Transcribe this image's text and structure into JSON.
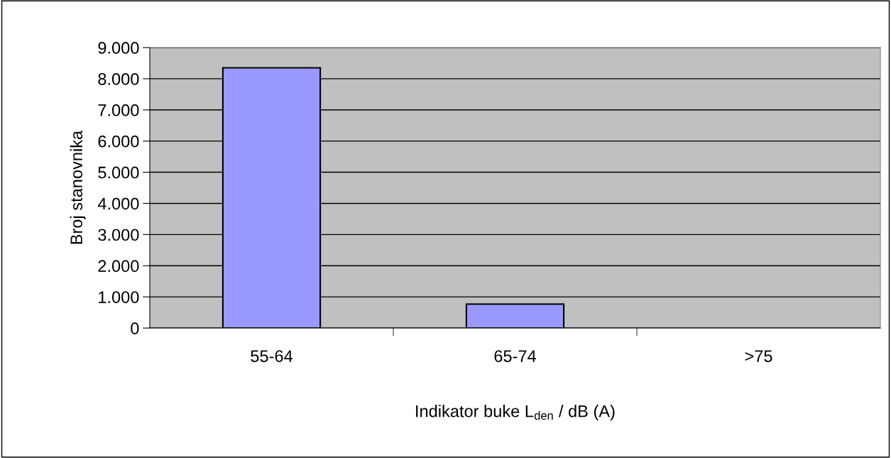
{
  "chart_data": {
    "type": "bar",
    "categories": [
      "55-64",
      "65-74",
      ">75"
    ],
    "values": [
      8350,
      770,
      0
    ],
    "color": "#9999ff",
    "xlabel": "Indikator buke L$_{den}$ / dB (A)",
    "ylabel": "Broj stanovnika",
    "ylim": [
      0,
      9000
    ],
    "yticks": [
      0,
      {
        "value": 1000,
        "label": "1.000"
      },
      {
        "value": 2000,
        "label": "2.000"
      },
      {
        "value": 3000,
        "label": "3.000"
      },
      {
        "value": 4000,
        "label": "4.000"
      },
      {
        "value": 5000,
        "label": "5.000"
      },
      {
        "value": 6000,
        "label": "6.000"
      },
      {
        "value": 7000,
        "label": "7.000"
      },
      {
        "value": 8000,
        "label": "8.000"
      },
      {
        "value": 9000,
        "label": "9.000"
      }
    ],
    "grid": "y",
    "legend": false
  }
}
